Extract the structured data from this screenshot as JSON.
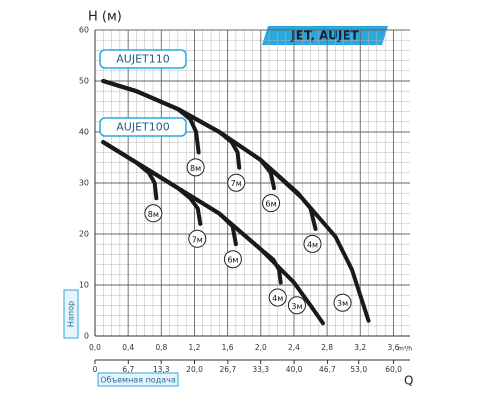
{
  "chart_data": {
    "type": "line",
    "title": "JET, AUJET",
    "y_label": "H (м)",
    "y_axis_name": "Напор",
    "x_unit": "m³/h",
    "x2_label": "Q",
    "x2_axis_name": "Объемная подача",
    "xlim": [
      0,
      3.8
    ],
    "xticks": [
      {
        "value": 0,
        "label": "0,0"
      },
      {
        "value": 0.4,
        "label": "0,4"
      },
      {
        "value": 0.8,
        "label": "0,8"
      },
      {
        "value": 1.2,
        "label": "1,2"
      },
      {
        "value": 1.6,
        "label": "1,6"
      },
      {
        "value": 2.0,
        "label": "2,0"
      },
      {
        "value": 2.4,
        "label": "2,4"
      },
      {
        "value": 2.8,
        "label": "2,8"
      },
      {
        "value": 3.2,
        "label": "3,2"
      },
      {
        "value": 3.6,
        "label": "3,6"
      }
    ],
    "x2lim": [
      0,
      63.3
    ],
    "x2ticks": [
      0,
      {
        "value": 6.7,
        "label": "6,7"
      },
      {
        "value": 13.3,
        "label": "13,3"
      },
      {
        "value": 20,
        "label": "20,0"
      },
      {
        "value": 26.7,
        "label": "26,7"
      },
      {
        "value": 33.3,
        "label": "33,3"
      },
      {
        "value": 40,
        "label": "40,0"
      },
      {
        "value": 46.7,
        "label": "46,7"
      },
      {
        "value": 53,
        "label": "53,0"
      },
      {
        "value": 60,
        "label": "60,0"
      }
    ],
    "ylim": [
      0,
      60
    ],
    "yticks": [
      0,
      10,
      20,
      30,
      40,
      50,
      60
    ],
    "grid": true,
    "color": "#1a1a1a",
    "models": [
      {
        "name": "AUJET110",
        "series": [
          {
            "name": "8м",
            "x": [
              0.1,
              0.5,
              1.0,
              1.15,
              1.22,
              1.25
            ],
            "values": [
              50,
              48,
              44.5,
              42.5,
              40,
              36
            ]
          },
          {
            "name": "7м",
            "x": [
              0.1,
              0.5,
              1.0,
              1.5,
              1.65,
              1.72,
              1.74
            ],
            "values": [
              50,
              48,
              44.5,
              40,
              38,
              36,
              33
            ]
          },
          {
            "name": "6м",
            "x": [
              0.1,
              0.5,
              1.0,
              1.5,
              2.0,
              2.12,
              2.16
            ],
            "values": [
              50,
              48,
              44.5,
              40,
              34.5,
              32,
              29
            ]
          },
          {
            "name": "4м",
            "x": [
              0.1,
              0.5,
              1.0,
              1.5,
              2.0,
              2.45,
              2.6,
              2.66
            ],
            "values": [
              50,
              48,
              44.5,
              40,
              34.5,
              28,
              25,
              21
            ]
          },
          {
            "name": "3м",
            "x": [
              0.1,
              0.5,
              1.0,
              1.5,
              2.0,
              2.5,
              2.9,
              3.1,
              3.2,
              3.3
            ],
            "values": [
              50,
              48,
              44.5,
              40,
              34.5,
              27,
              19.5,
              13,
              8,
              3
            ]
          }
        ]
      },
      {
        "name": "AUJET100",
        "series": [
          {
            "name": "8м",
            "x": [
              0.1,
              0.5,
              0.65,
              0.72,
              0.74
            ],
            "values": [
              38,
              34,
              32,
              30,
              27
            ]
          },
          {
            "name": "7м",
            "x": [
              0.1,
              0.5,
              1.0,
              1.15,
              1.24,
              1.27
            ],
            "values": [
              38,
              34,
              29,
              27,
              25,
              22
            ]
          },
          {
            "name": "6м",
            "x": [
              0.1,
              0.5,
              1.0,
              1.5,
              1.66,
              1.7
            ],
            "values": [
              38,
              34,
              29,
              24,
              21.5,
              18
            ]
          },
          {
            "name": "4м",
            "x": [
              0.1,
              0.5,
              1.0,
              1.5,
              2.0,
              2.15,
              2.22,
              2.24
            ],
            "values": [
              38,
              34,
              29,
              24,
              17,
              15,
              13,
              10.5
            ]
          },
          {
            "name": "3м",
            "x": [
              0.1,
              0.5,
              1.0,
              1.5,
              2.0,
              2.4,
              2.6,
              2.75
            ],
            "values": [
              38,
              34,
              29,
              24,
              17,
              10.5,
              6,
              2.5
            ]
          }
        ]
      }
    ]
  }
}
